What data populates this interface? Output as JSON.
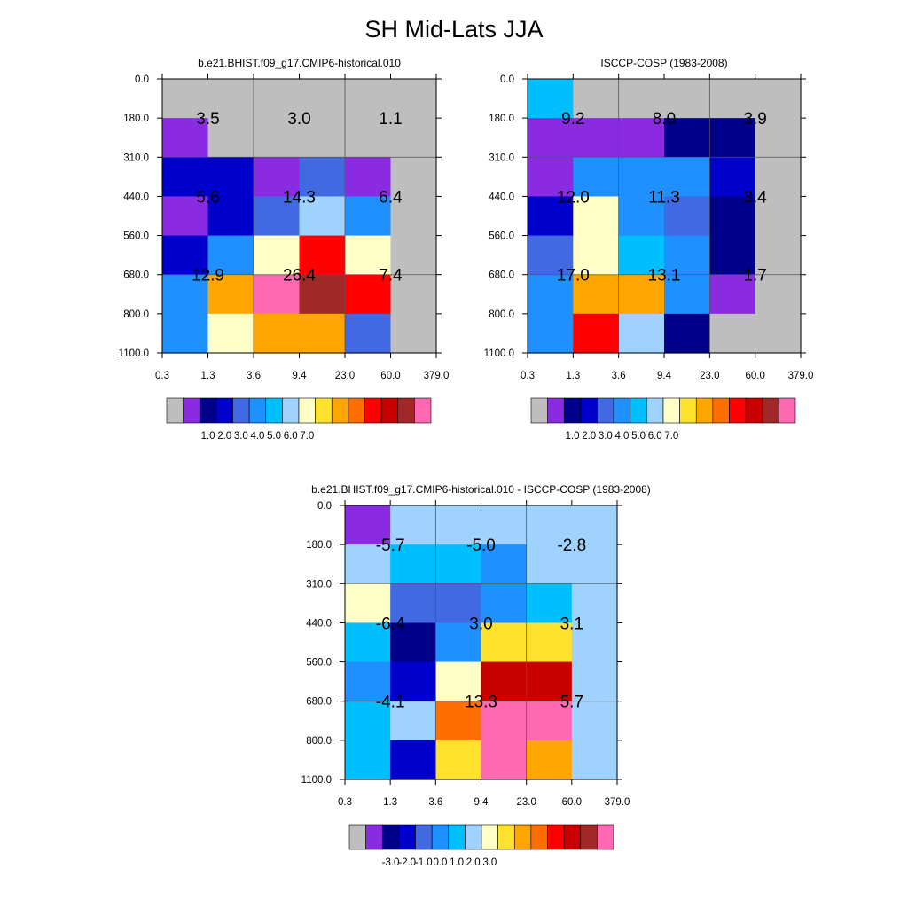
{
  "figure_title": "SH Mid-Lats JJA",
  "chart_data": [
    {
      "type": "heatmap",
      "title": "b.e21.BHIST.f09_g17.CMIP6-historical.010",
      "xlabel": "",
      "ylabel": "",
      "x_tick_labels": [
        "0.3",
        "1.3",
        "3.6",
        "9.4",
        "23.0",
        "60.0",
        "379.0"
      ],
      "y_tick_labels": [
        "0.0",
        "180.0",
        "310.0",
        "440.0",
        "560.0",
        "680.0",
        "800.0",
        "1100.0"
      ],
      "cell_value_index": [
        [
          0,
          0,
          0,
          0,
          0,
          0
        ],
        [
          1,
          0,
          0,
          0,
          0,
          0
        ],
        [
          3,
          3,
          1,
          4,
          1,
          0
        ],
        [
          1,
          3,
          4,
          7,
          5,
          0
        ],
        [
          3,
          5,
          8,
          12,
          8,
          0
        ],
        [
          5,
          10,
          15,
          14,
          12,
          0
        ],
        [
          5,
          8,
          10,
          10,
          4,
          0
        ]
      ],
      "block_labels": [
        {
          "row": 0,
          "col": 0,
          "text": "3.5"
        },
        {
          "row": 0,
          "col": 1,
          "text": "3.0"
        },
        {
          "row": 0,
          "col": 2,
          "text": "1.1"
        },
        {
          "row": 1,
          "col": 0,
          "text": "5.6"
        },
        {
          "row": 1,
          "col": 1,
          "text": "14.3"
        },
        {
          "row": 1,
          "col": 2,
          "text": "6.4"
        },
        {
          "row": 2,
          "col": 0,
          "text": "12.9"
        },
        {
          "row": 2,
          "col": 1,
          "text": "26.4"
        },
        {
          "row": 2,
          "col": 2,
          "text": "7.4"
        }
      ],
      "colorbar": {
        "colors": [
          "#bebebe",
          "#8a2be2",
          "#00008b",
          "#0000cd",
          "#4169e1",
          "#1e90ff",
          "#00bfff",
          "#a0d2ff",
          "#ffffc8",
          "#ffe12d",
          "#ffa500",
          "#ff6e00",
          "#ff0000",
          "#c80000",
          "#a02828",
          "#ff69b4"
        ],
        "tick_labels": [
          "1.0",
          "2.0",
          "3.0",
          "4.0",
          "5.0",
          "6.0",
          "7.0"
        ]
      }
    },
    {
      "type": "heatmap",
      "title": "ISCCP-COSP (1983-2008)",
      "xlabel": "",
      "ylabel": "",
      "x_tick_labels": [
        "0.3",
        "1.3",
        "3.6",
        "9.4",
        "23.0",
        "60.0",
        "379.0"
      ],
      "y_tick_labels": [
        "0.0",
        "180.0",
        "310.0",
        "440.0",
        "560.0",
        "680.0",
        "800.0",
        "1100.0"
      ],
      "cell_value_index": [
        [
          6,
          0,
          0,
          0,
          0,
          0
        ],
        [
          1,
          1,
          1,
          2,
          2,
          0
        ],
        [
          1,
          5,
          5,
          5,
          3,
          0
        ],
        [
          3,
          8,
          5,
          4,
          2,
          0
        ],
        [
          4,
          8,
          6,
          5,
          2,
          0
        ],
        [
          5,
          10,
          10,
          5,
          1,
          0
        ],
        [
          5,
          12,
          7,
          2,
          0,
          0
        ]
      ],
      "block_labels": [
        {
          "row": 0,
          "col": 0,
          "text": "9.2"
        },
        {
          "row": 0,
          "col": 1,
          "text": "8.0"
        },
        {
          "row": 0,
          "col": 2,
          "text": "3.9"
        },
        {
          "row": 1,
          "col": 0,
          "text": "12.0"
        },
        {
          "row": 1,
          "col": 1,
          "text": "11.3"
        },
        {
          "row": 1,
          "col": 2,
          "text": "3.4"
        },
        {
          "row": 2,
          "col": 0,
          "text": "17.0"
        },
        {
          "row": 2,
          "col": 1,
          "text": "13.1"
        },
        {
          "row": 2,
          "col": 2,
          "text": "1.7"
        }
      ],
      "colorbar": {
        "colors": [
          "#bebebe",
          "#8a2be2",
          "#00008b",
          "#0000cd",
          "#4169e1",
          "#1e90ff",
          "#00bfff",
          "#a0d2ff",
          "#ffffc8",
          "#ffe12d",
          "#ffa500",
          "#ff6e00",
          "#ff0000",
          "#c80000",
          "#a02828",
          "#ff69b4"
        ],
        "tick_labels": [
          "1.0",
          "2.0",
          "3.0",
          "4.0",
          "5.0",
          "6.0",
          "7.0"
        ]
      }
    },
    {
      "type": "heatmap",
      "title": "b.e21.BHIST.f09_g17.CMIP6-historical.010 - ISCCP-COSP (1983-2008)",
      "xlabel": "",
      "ylabel": "",
      "x_tick_labels": [
        "0.3",
        "1.3",
        "3.6",
        "9.4",
        "23.0",
        "60.0",
        "379.0"
      ],
      "y_tick_labels": [
        "0.0",
        "180.0",
        "310.0",
        "440.0",
        "560.0",
        "680.0",
        "800.0",
        "1100.0"
      ],
      "cell_value_index": [
        [
          1,
          7,
          7,
          7,
          7,
          7
        ],
        [
          7,
          6,
          6,
          5,
          7,
          7
        ],
        [
          8,
          4,
          4,
          5,
          6,
          7
        ],
        [
          6,
          2,
          5,
          9,
          9,
          7
        ],
        [
          5,
          3,
          8,
          13,
          13,
          7
        ],
        [
          6,
          7,
          11,
          15,
          15,
          7
        ],
        [
          6,
          3,
          9,
          15,
          10,
          7
        ]
      ],
      "block_labels": [
        {
          "row": 0,
          "col": 0,
          "text": "-5.7"
        },
        {
          "row": 0,
          "col": 1,
          "text": "-5.0"
        },
        {
          "row": 0,
          "col": 2,
          "text": "-2.8"
        },
        {
          "row": 1,
          "col": 0,
          "text": "-6.4"
        },
        {
          "row": 1,
          "col": 1,
          "text": "3.0"
        },
        {
          "row": 1,
          "col": 2,
          "text": "3.1"
        },
        {
          "row": 2,
          "col": 0,
          "text": "-4.1"
        },
        {
          "row": 2,
          "col": 1,
          "text": "13.3"
        },
        {
          "row": 2,
          "col": 2,
          "text": "5.7"
        }
      ],
      "colorbar": {
        "colors": [
          "#bebebe",
          "#8a2be2",
          "#00008b",
          "#0000cd",
          "#4169e1",
          "#1e90ff",
          "#00bfff",
          "#a0d2ff",
          "#ffffc8",
          "#ffe12d",
          "#ffa500",
          "#ff6e00",
          "#ff0000",
          "#c80000",
          "#a02828",
          "#ff69b4"
        ],
        "tick_labels": [
          "-3.0",
          "-2.0",
          "-1.0",
          "0.0",
          "1.0",
          "2.0",
          "3.0"
        ]
      }
    }
  ]
}
